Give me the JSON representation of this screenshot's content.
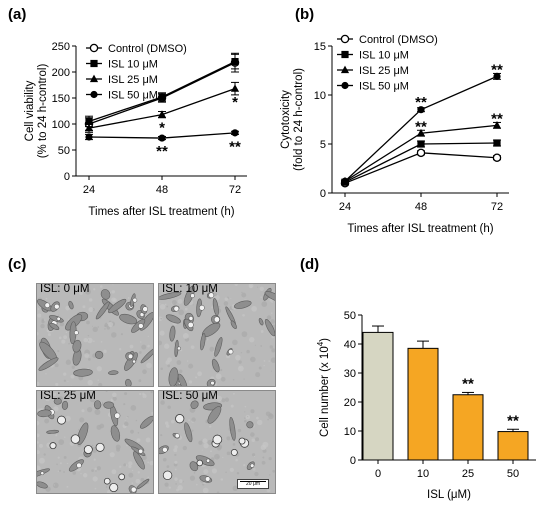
{
  "panels": {
    "a": {
      "letter": "(a)"
    },
    "b": {
      "letter": "(b)"
    },
    "c": {
      "letter": "(c)"
    },
    "d": {
      "letter": "(d)"
    }
  },
  "micro": {
    "tiles": [
      {
        "label": "ISL: 0 μM"
      },
      {
        "label": "ISL: 10 μM"
      },
      {
        "label": "ISL: 25 μM"
      },
      {
        "label": "ISL: 50 μM"
      }
    ],
    "scalebar_label": "20 μm"
  },
  "chart_data": [
    {
      "id": "a",
      "type": "line",
      "x": [
        24,
        48,
        72
      ],
      "xlabel": "Times after ISL treatment (h)",
      "ylabel_line1": "Cell viability",
      "ylabel_line2": "(% to 24 h-control)",
      "ylim": [
        0,
        250
      ],
      "yticks": [
        0,
        50,
        100,
        150,
        200,
        250
      ],
      "grid": false,
      "legend": "top-left",
      "series": [
        {
          "name": "Control (DMSO)",
          "marker": "open-circle",
          "values": [
            100,
            150,
            218
          ],
          "err": [
            12,
            8,
            18
          ]
        },
        {
          "name": "ISL 10 μM",
          "marker": "square",
          "values": [
            105,
            152,
            220
          ],
          "err": [
            10,
            8,
            14
          ]
        },
        {
          "name": "ISL 25 μM",
          "marker": "triangle",
          "values": [
            92,
            118,
            168
          ],
          "err": [
            8,
            6,
            12
          ]
        },
        {
          "name": "ISL 50 μM",
          "marker": "circle",
          "values": [
            75,
            73,
            83
          ],
          "err": [
            5,
            3,
            3
          ]
        }
      ],
      "annotations": [
        {
          "x": 48,
          "y": 93,
          "text": "*"
        },
        {
          "x": 48,
          "y": 48,
          "text": "**"
        },
        {
          "x": 72,
          "y": 142,
          "text": "*"
        },
        {
          "x": 72,
          "y": 57,
          "text": "**"
        }
      ]
    },
    {
      "id": "b",
      "type": "line",
      "x": [
        24,
        48,
        72
      ],
      "xlabel": "Times after ISL treatment (h)",
      "ylabel_line1": "Cytotoxicity",
      "ylabel_line2": "(fold to 24 h-control)",
      "ylim": [
        0,
        15
      ],
      "yticks": [
        0,
        5,
        10,
        15
      ],
      "grid": false,
      "legend": "top-left",
      "series": [
        {
          "name": "Control (DMSO)",
          "marker": "open-circle",
          "values": [
            1,
            4.1,
            3.6
          ],
          "err": [
            0.1,
            0.2,
            0.2
          ]
        },
        {
          "name": "ISL 10 μM",
          "marker": "square",
          "values": [
            1.1,
            5.0,
            5.1
          ],
          "err": [
            0.1,
            0.3,
            0.3
          ]
        },
        {
          "name": "ISL 25 μM",
          "marker": "triangle",
          "values": [
            1.2,
            6.1,
            6.9
          ],
          "err": [
            0.1,
            0.3,
            0.3
          ]
        },
        {
          "name": "ISL 50 μM",
          "marker": "circle",
          "values": [
            1.2,
            8.5,
            11.9
          ],
          "err": [
            0.1,
            0.2,
            0.3
          ]
        }
      ],
      "annotations": [
        {
          "x": 48,
          "y": 9.3,
          "text": "**"
        },
        {
          "x": 48,
          "y": 6.8,
          "text": "**"
        },
        {
          "x": 72,
          "y": 12.6,
          "text": "**"
        },
        {
          "x": 72,
          "y": 7.6,
          "text": "**"
        }
      ]
    },
    {
      "id": "d",
      "type": "bar",
      "categories": [
        "0",
        "10",
        "25",
        "50"
      ],
      "values": [
        44,
        38.5,
        22.5,
        9.8
      ],
      "err": [
        2.2,
        2.5,
        0.8,
        0.8
      ],
      "colors": [
        "#d6d6c2",
        "#f5a623",
        "#f5a623",
        "#f5a623"
      ],
      "xlabel": "ISL (μM)",
      "ylabel": "Cell number (x 10",
      "ylabel_sup": "4",
      "ylabel_end": ")",
      "ylim": [
        0,
        50
      ],
      "yticks": [
        0,
        10,
        20,
        30,
        40,
        50
      ],
      "annotations": [
        {
          "category": "25",
          "text": "**"
        },
        {
          "category": "50",
          "text": "**"
        }
      ]
    }
  ]
}
